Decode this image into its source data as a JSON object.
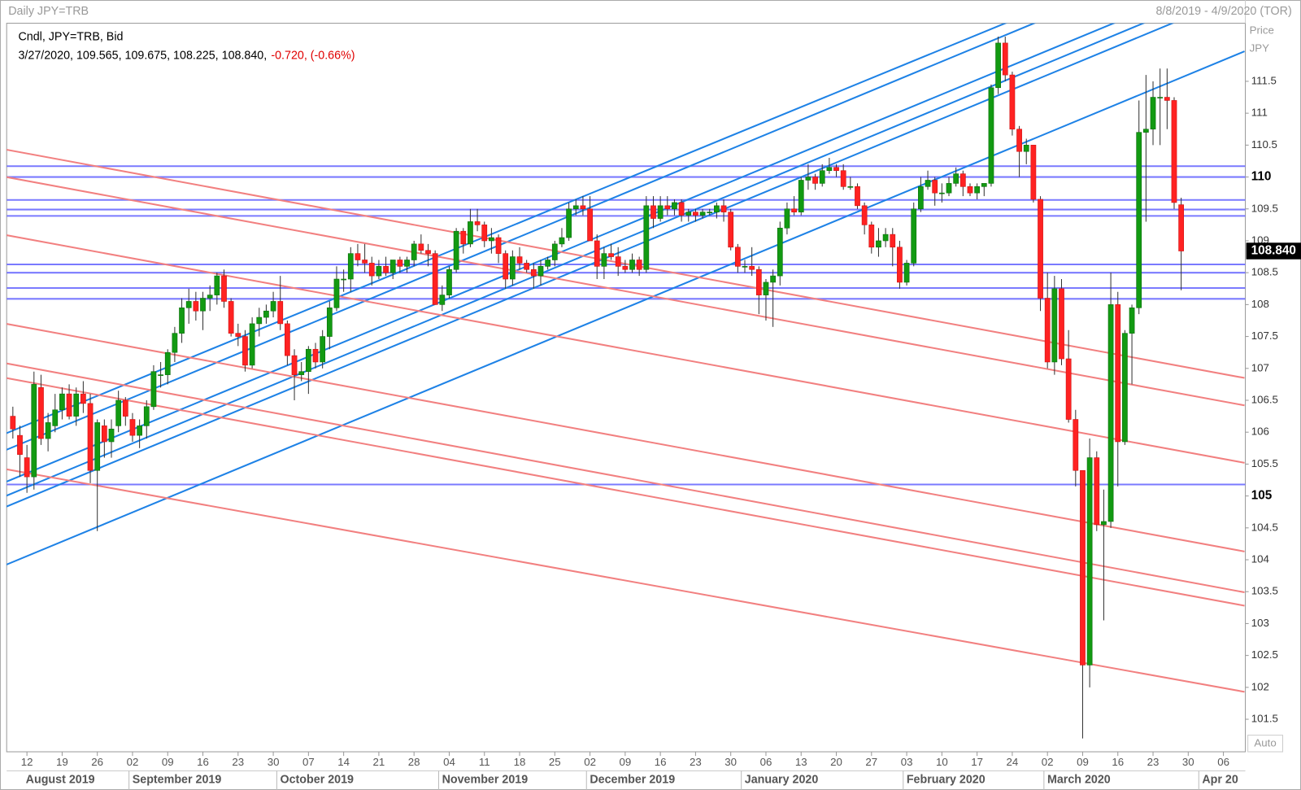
{
  "chart_data": {
    "type": "candlestick",
    "title": "Daily JPY=TRB",
    "date_range": "8/8/2019 - 4/9/2020 (TOR)",
    "legend_title": "Cndl, JPY=TRB, Bid",
    "legend_values": "3/27/2020, 109.565, 109.675, 108.225, 108.840,",
    "legend_change": "-0.720, (-0.66%)",
    "y_axis_title": "Price",
    "y_axis_unit": "JPY",
    "scale_button": "Auto",
    "up_color": "#129a12",
    "down_color": "#ff2222",
    "x": [
      "2019-08-08",
      "2019-08-09",
      "2019-08-12",
      "2019-08-13",
      "2019-08-14",
      "2019-08-15",
      "2019-08-16",
      "2019-08-19",
      "2019-08-20",
      "2019-08-21",
      "2019-08-22",
      "2019-08-23",
      "2019-08-26",
      "2019-08-27",
      "2019-08-28",
      "2019-08-29",
      "2019-08-30",
      "2019-09-02",
      "2019-09-03",
      "2019-09-04",
      "2019-09-05",
      "2019-09-06",
      "2019-09-09",
      "2019-09-10",
      "2019-09-11",
      "2019-09-12",
      "2019-09-13",
      "2019-09-16",
      "2019-09-17",
      "2019-09-18",
      "2019-09-19",
      "2019-09-20",
      "2019-09-23",
      "2019-09-24",
      "2019-09-25",
      "2019-09-26",
      "2019-09-27",
      "2019-09-30",
      "2019-10-01",
      "2019-10-02",
      "2019-10-03",
      "2019-10-04",
      "2019-10-07",
      "2019-10-08",
      "2019-10-09",
      "2019-10-10",
      "2019-10-11",
      "2019-10-14",
      "2019-10-15",
      "2019-10-16",
      "2019-10-17",
      "2019-10-18",
      "2019-10-21",
      "2019-10-22",
      "2019-10-23",
      "2019-10-24",
      "2019-10-25",
      "2019-10-28",
      "2019-10-29",
      "2019-10-30",
      "2019-10-31",
      "2019-11-01",
      "2019-11-04",
      "2019-11-05",
      "2019-11-06",
      "2019-11-07",
      "2019-11-08",
      "2019-11-11",
      "2019-11-12",
      "2019-11-13",
      "2019-11-14",
      "2019-11-15",
      "2019-11-18",
      "2019-11-19",
      "2019-11-20",
      "2019-11-21",
      "2019-11-22",
      "2019-11-25",
      "2019-11-26",
      "2019-11-27",
      "2019-11-28",
      "2019-11-29",
      "2019-12-02",
      "2019-12-03",
      "2019-12-04",
      "2019-12-05",
      "2019-12-06",
      "2019-12-09",
      "2019-12-10",
      "2019-12-11",
      "2019-12-12",
      "2019-12-13",
      "2019-12-16",
      "2019-12-17",
      "2019-12-18",
      "2019-12-19",
      "2019-12-20",
      "2019-12-23",
      "2019-12-24",
      "2019-12-25",
      "2019-12-26",
      "2019-12-27",
      "2019-12-30",
      "2019-12-31",
      "2020-01-01",
      "2020-01-02",
      "2020-01-03",
      "2020-01-06",
      "2020-01-07",
      "2020-01-08",
      "2020-01-09",
      "2020-01-10",
      "2020-01-13",
      "2020-01-14",
      "2020-01-15",
      "2020-01-16",
      "2020-01-17",
      "2020-01-20",
      "2020-01-21",
      "2020-01-22",
      "2020-01-23",
      "2020-01-24",
      "2020-01-27",
      "2020-01-28",
      "2020-01-29",
      "2020-01-30",
      "2020-01-31",
      "2020-02-03",
      "2020-02-04",
      "2020-02-05",
      "2020-02-06",
      "2020-02-07",
      "2020-02-10",
      "2020-02-11",
      "2020-02-12",
      "2020-02-13",
      "2020-02-14",
      "2020-02-17",
      "2020-02-18",
      "2020-02-19",
      "2020-02-20",
      "2020-02-21",
      "2020-02-24",
      "2020-02-25",
      "2020-02-26",
      "2020-02-27",
      "2020-02-28",
      "2020-03-02",
      "2020-03-03",
      "2020-03-04",
      "2020-03-05",
      "2020-03-06",
      "2020-03-09",
      "2020-03-10",
      "2020-03-11",
      "2020-03-12",
      "2020-03-13",
      "2020-03-16",
      "2020-03-17",
      "2020-03-18",
      "2020-03-19",
      "2020-03-20",
      "2020-03-23",
      "2020-03-24",
      "2020-03-25",
      "2020-03-26",
      "2020-03-27"
    ],
    "open": [
      106.25,
      105.95,
      105.6,
      105.3,
      106.7,
      105.9,
      106.1,
      106.35,
      106.6,
      106.25,
      106.6,
      106.45,
      105.4,
      106.1,
      105.85,
      106.1,
      106.5,
      106.2,
      105.95,
      106.1,
      106.4,
      106.9,
      106.9,
      107.25,
      107.55,
      107.95,
      108.05,
      107.9,
      108.1,
      108.15,
      108.45,
      108.05,
      107.55,
      107.5,
      107.05,
      107.7,
      107.8,
      107.9,
      108.05,
      107.7,
      107.2,
      106.9,
      106.95,
      107.3,
      107.1,
      107.5,
      107.95,
      108.4,
      108.4,
      108.8,
      108.7,
      108.65,
      108.45,
      108.6,
      108.5,
      108.7,
      108.6,
      108.7,
      108.95,
      108.85,
      108.8,
      108.0,
      108.15,
      108.55,
      109.15,
      108.95,
      109.3,
      109.25,
      109.0,
      109.05,
      108.8,
      108.4,
      108.75,
      108.65,
      108.55,
      108.45,
      108.6,
      108.7,
      108.95,
      109.05,
      109.5,
      109.55,
      109.5,
      109.0,
      108.6,
      108.8,
      108.75,
      108.6,
      108.55,
      108.7,
      108.55,
      109.55,
      109.35,
      109.55,
      109.5,
      109.6,
      109.4,
      109.45,
      109.4,
      109.45,
      109.45,
      109.55,
      109.45,
      108.9,
      108.6,
      108.6,
      108.55,
      108.15,
      108.35,
      108.45,
      109.2,
      109.5,
      109.45,
      109.95,
      110.0,
      109.9,
      110.1,
      110.15,
      110.1,
      109.85,
      109.85,
      109.55,
      109.25,
      108.9,
      109.0,
      109.1,
      108.9,
      108.35,
      108.65,
      109.5,
      109.85,
      109.95,
      109.75,
      109.75,
      109.9,
      110.05,
      109.85,
      109.75,
      109.85,
      109.9,
      111.4,
      112.1,
      111.6,
      110.75,
      110.4,
      110.5,
      109.65,
      108.1,
      107.1,
      108.25,
      107.15,
      106.2,
      105.4,
      102.35,
      105.6,
      104.55,
      104.6,
      108.0,
      105.85,
      107.55,
      107.95,
      110.7,
      110.75,
      111.25,
      111.25,
      111.2,
      109.565
    ],
    "high": [
      106.4,
      106.1,
      105.8,
      106.95,
      106.9,
      106.3,
      106.6,
      106.7,
      106.75,
      106.7,
      106.8,
      106.6,
      106.2,
      106.2,
      106.2,
      106.65,
      106.55,
      106.3,
      106.2,
      106.5,
      107.05,
      107.1,
      107.3,
      107.65,
      108.1,
      108.25,
      108.2,
      108.2,
      108.3,
      108.5,
      108.55,
      108.1,
      107.7,
      107.6,
      107.8,
      107.95,
      108.0,
      108.2,
      108.45,
      107.75,
      107.3,
      107.1,
      107.35,
      107.4,
      107.6,
      108.05,
      108.6,
      108.55,
      108.9,
      108.95,
      108.95,
      108.75,
      108.7,
      108.75,
      108.7,
      108.75,
      108.75,
      109.0,
      109.1,
      108.95,
      108.85,
      108.3,
      108.6,
      109.2,
      109.2,
      109.5,
      109.5,
      109.3,
      109.2,
      109.1,
      108.85,
      108.85,
      108.9,
      108.7,
      108.65,
      108.7,
      108.75,
      109.0,
      109.2,
      109.6,
      109.65,
      109.7,
      109.7,
      109.1,
      108.9,
      108.95,
      108.9,
      108.7,
      108.8,
      108.75,
      109.7,
      109.7,
      109.7,
      109.7,
      109.65,
      109.65,
      109.5,
      109.5,
      109.5,
      109.5,
      109.6,
      109.65,
      109.5,
      108.95,
      108.7,
      108.9,
      108.6,
      108.4,
      108.55,
      109.3,
      109.6,
      109.7,
      110.0,
      110.2,
      110.05,
      110.2,
      110.3,
      110.2,
      110.2,
      110.0,
      109.9,
      109.6,
      109.3,
      109.2,
      109.2,
      109.2,
      109.0,
      108.7,
      109.6,
      110.0,
      110.1,
      110.0,
      109.9,
      110.0,
      110.15,
      110.1,
      109.9,
      109.9,
      109.9,
      111.45,
      112.2,
      112.2,
      111.65,
      110.8,
      110.6,
      110.5,
      109.7,
      108.5,
      108.45,
      108.4,
      107.6,
      106.35,
      105.4,
      105.9,
      105.7,
      105.1,
      108.5,
      108.2,
      107.6,
      108.0,
      111.2,
      111.6,
      111.5,
      111.7,
      111.7,
      111.25,
      109.675
    ],
    "low": [
      105.9,
      105.3,
      105.05,
      105.1,
      105.8,
      105.7,
      106.0,
      106.2,
      106.2,
      106.1,
      106.3,
      105.2,
      104.45,
      105.6,
      105.6,
      106.0,
      106.1,
      105.85,
      105.75,
      105.9,
      106.35,
      106.7,
      106.75,
      107.1,
      107.4,
      107.7,
      107.75,
      107.6,
      107.9,
      108.0,
      107.95,
      107.5,
      107.35,
      106.95,
      107.0,
      107.5,
      107.7,
      107.8,
      107.6,
      107.05,
      106.5,
      106.8,
      106.6,
      107.0,
      107.0,
      107.3,
      107.9,
      108.2,
      108.2,
      108.6,
      108.5,
      108.3,
      108.4,
      108.45,
      108.4,
      108.5,
      108.5,
      108.6,
      108.8,
      108.6,
      108.0,
      107.9,
      108.1,
      108.5,
      108.8,
      108.9,
      109.15,
      108.9,
      108.8,
      108.65,
      108.25,
      108.3,
      108.55,
      108.5,
      108.25,
      108.3,
      108.55,
      108.6,
      108.9,
      109.0,
      109.4,
      109.4,
      109.0,
      108.4,
      108.4,
      108.7,
      108.45,
      108.5,
      108.5,
      108.45,
      108.5,
      109.2,
      109.3,
      109.4,
      109.4,
      109.3,
      109.3,
      109.3,
      109.35,
      109.4,
      109.35,
      109.3,
      108.85,
      108.5,
      108.5,
      108.45,
      107.85,
      107.75,
      107.65,
      108.3,
      109.1,
      109.4,
      109.4,
      109.8,
      109.8,
      109.85,
      110.05,
      110.0,
      109.8,
      109.8,
      109.5,
      109.1,
      108.8,
      108.75,
      108.9,
      108.6,
      108.25,
      108.3,
      108.6,
      109.45,
      109.8,
      109.55,
      109.6,
      109.7,
      109.85,
      109.7,
      109.7,
      109.65,
      109.7,
      109.85,
      111.3,
      111.5,
      110.65,
      110.0,
      110.2,
      109.6,
      107.9,
      107.0,
      106.9,
      107.05,
      106.15,
      105.15,
      101.2,
      102.0,
      104.45,
      103.05,
      104.5,
      105.15,
      105.8,
      106.75,
      107.85,
      109.3,
      110.5,
      110.5,
      110.75,
      109.5,
      108.225
    ],
    "close": [
      106.05,
      105.65,
      105.3,
      106.75,
      105.9,
      106.15,
      106.35,
      106.6,
      106.25,
      106.6,
      106.45,
      105.4,
      106.15,
      105.85,
      106.05,
      106.5,
      106.25,
      105.95,
      106.1,
      106.4,
      106.95,
      106.9,
      107.25,
      107.55,
      107.95,
      108.05,
      107.9,
      108.1,
      108.15,
      108.45,
      108.05,
      107.55,
      107.5,
      107.05,
      107.7,
      107.8,
      107.9,
      108.05,
      107.7,
      107.2,
      106.9,
      106.95,
      107.3,
      107.1,
      107.5,
      107.95,
      108.4,
      108.4,
      108.8,
      108.7,
      108.65,
      108.45,
      108.6,
      108.5,
      108.7,
      108.6,
      108.7,
      108.95,
      108.85,
      108.8,
      108.0,
      108.15,
      108.55,
      109.15,
      108.95,
      109.3,
      109.25,
      109.0,
      109.05,
      108.8,
      108.4,
      108.75,
      108.65,
      108.55,
      108.45,
      108.6,
      108.7,
      108.95,
      109.05,
      109.5,
      109.55,
      109.5,
      109.0,
      108.6,
      108.8,
      108.75,
      108.6,
      108.55,
      108.7,
      108.55,
      109.55,
      109.35,
      109.55,
      109.5,
      109.6,
      109.4,
      109.45,
      109.4,
      109.45,
      109.45,
      109.55,
      109.45,
      108.9,
      108.6,
      108.6,
      108.55,
      108.15,
      108.35,
      108.45,
      109.2,
      109.5,
      109.45,
      109.95,
      110.0,
      109.9,
      110.1,
      110.15,
      110.1,
      109.85,
      109.85,
      109.55,
      109.25,
      108.9,
      109.0,
      109.1,
      108.9,
      108.35,
      108.65,
      109.5,
      109.85,
      109.95,
      109.75,
      109.75,
      109.9,
      110.05,
      109.85,
      109.75,
      109.85,
      109.9,
      111.4,
      112.1,
      111.6,
      110.75,
      110.4,
      110.5,
      109.65,
      108.1,
      107.1,
      108.25,
      107.15,
      106.2,
      105.4,
      102.35,
      105.6,
      104.55,
      104.6,
      108.0,
      105.85,
      107.55,
      107.95,
      110.7,
      110.75,
      111.25,
      111.25,
      111.2,
      109.6,
      108.84
    ],
    "xlim": [
      "2019-08-07",
      "2020-04-09"
    ],
    "ylim": [
      100.99,
      112.41
    ],
    "yticks": [
      101.5,
      102,
      102.5,
      103,
      103.5,
      104,
      104.5,
      105,
      105.5,
      106,
      106.5,
      107,
      107.5,
      108,
      108.5,
      109,
      109.5,
      110,
      110.5,
      111,
      111.5
    ],
    "xticks": [
      {
        "value": "2019-08-12",
        "label": "12"
      },
      {
        "value": "2019-08-19",
        "label": "19"
      },
      {
        "value": "2019-08-26",
        "label": "26"
      },
      {
        "value": "2019-09-02",
        "label": "02"
      },
      {
        "value": "2019-09-09",
        "label": "09"
      },
      {
        "value": "2019-09-16",
        "label": "16"
      },
      {
        "value": "2019-09-23",
        "label": "23"
      },
      {
        "value": "2019-09-30",
        "label": "30"
      },
      {
        "value": "2019-10-07",
        "label": "07"
      },
      {
        "value": "2019-10-14",
        "label": "14"
      },
      {
        "value": "2019-10-21",
        "label": "21"
      },
      {
        "value": "2019-10-28",
        "label": "28"
      },
      {
        "value": "2019-11-04",
        "label": "04"
      },
      {
        "value": "2019-11-11",
        "label": "11"
      },
      {
        "value": "2019-11-18",
        "label": "18"
      },
      {
        "value": "2019-11-25",
        "label": "25"
      },
      {
        "value": "2019-12-02",
        "label": "02"
      },
      {
        "value": "2019-12-09",
        "label": "09"
      },
      {
        "value": "2019-12-16",
        "label": "16"
      },
      {
        "value": "2019-12-23",
        "label": "23"
      },
      {
        "value": "2019-12-30",
        "label": "30"
      },
      {
        "value": "2020-01-06",
        "label": "06"
      },
      {
        "value": "2020-01-13",
        "label": "13"
      },
      {
        "value": "2020-01-20",
        "label": "20"
      },
      {
        "value": "2020-01-27",
        "label": "27"
      },
      {
        "value": "2020-02-03",
        "label": "03"
      },
      {
        "value": "2020-02-10",
        "label": "10"
      },
      {
        "value": "2020-02-17",
        "label": "17"
      },
      {
        "value": "2020-02-24",
        "label": "24"
      },
      {
        "value": "2020-03-02",
        "label": "02"
      },
      {
        "value": "2020-03-09",
        "label": "09"
      },
      {
        "value": "2020-03-16",
        "label": "16"
      },
      {
        "value": "2020-03-23",
        "label": "23"
      },
      {
        "value": "2020-03-30",
        "label": "30"
      },
      {
        "value": "2020-04-06",
        "label": "06"
      }
    ],
    "months": [
      {
        "value": "2019-08",
        "label": "August 2019"
      },
      {
        "value": "2019-09",
        "label": "September 2019"
      },
      {
        "value": "2019-10",
        "label": "October 2019"
      },
      {
        "value": "2019-11",
        "label": "November 2019"
      },
      {
        "value": "2019-12",
        "label": "December 2019"
      },
      {
        "value": "2020-01",
        "label": "January 2020"
      },
      {
        "value": "2020-02",
        "label": "February 2020"
      },
      {
        "value": "2020-03",
        "label": "March 2020"
      },
      {
        "value": "2020-04",
        "label": "Apr 20"
      }
    ],
    "last_price": {
      "value": 108.84,
      "label": "108.840"
    },
    "hline_color": "#7a7aff",
    "hlines": [
      110.17,
      110.0,
      109.64,
      109.49,
      109.39,
      108.63,
      108.5,
      108.26,
      108.09,
      105.18
    ],
    "trendlines": [
      {
        "color": "#1e82e6",
        "x": [
          "2019-08-07",
          "2020-04-09"
        ],
        "y": [
          105.98,
          113.95
        ]
      },
      {
        "color": "#1e82e6",
        "x": [
          "2019-08-07",
          "2020-04-09"
        ],
        "y": [
          105.72,
          113.78
        ]
      },
      {
        "color": "#1e82e6",
        "x": [
          "2019-08-07",
          "2020-04-09"
        ],
        "y": [
          105.22,
          113.26
        ]
      },
      {
        "color": "#1e82e6",
        "x": [
          "2019-08-07",
          "2020-04-09"
        ],
        "y": [
          105.0,
          113.07
        ]
      },
      {
        "color": "#1e82e6",
        "x": [
          "2019-08-07",
          "2020-04-09"
        ],
        "y": [
          104.83,
          112.88
        ]
      },
      {
        "color": "#1e82e6",
        "x": [
          "2019-08-07",
          "2020-04-09"
        ],
        "y": [
          103.92,
          111.97
        ]
      },
      {
        "color": "#f28080",
        "x": [
          "2019-08-07",
          "2020-04-09"
        ],
        "y": [
          110.43,
          106.85
        ]
      },
      {
        "color": "#f28080",
        "x": [
          "2019-08-07",
          "2020-04-09"
        ],
        "y": [
          110.0,
          106.42
        ]
      },
      {
        "color": "#f28080",
        "x": [
          "2019-08-07",
          "2020-04-09"
        ],
        "y": [
          109.09,
          105.52
        ]
      },
      {
        "color": "#f28080",
        "x": [
          "2019-08-07",
          "2020-04-09"
        ],
        "y": [
          107.7,
          104.13
        ]
      },
      {
        "color": "#f28080",
        "x": [
          "2019-08-07",
          "2020-04-09"
        ],
        "y": [
          107.08,
          103.49
        ]
      },
      {
        "color": "#f28080",
        "x": [
          "2019-08-07",
          "2020-04-09"
        ],
        "y": [
          106.85,
          103.28
        ]
      },
      {
        "color": "#f28080",
        "x": [
          "2019-08-07",
          "2020-04-09"
        ],
        "y": [
          105.42,
          101.93
        ]
      }
    ]
  }
}
